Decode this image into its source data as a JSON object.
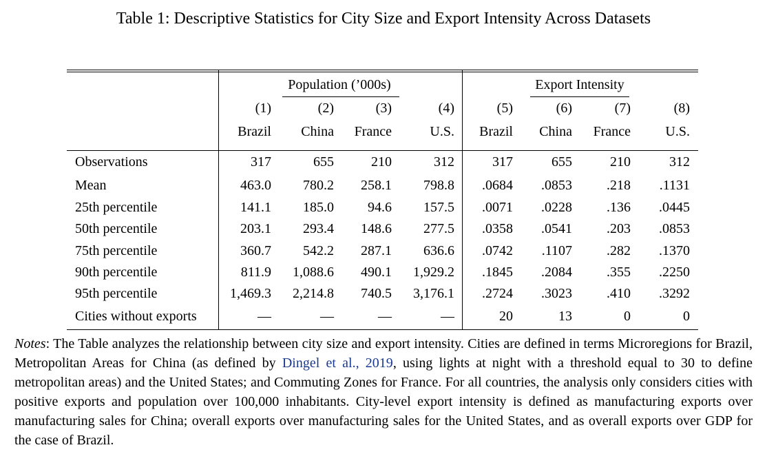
{
  "caption": "Table 1: Descriptive Statistics for City Size and Export Intensity Across Datasets",
  "groups": {
    "population": "Population (’000s)",
    "export": "Export Intensity"
  },
  "column_numbers": [
    "(1)",
    "(2)",
    "(3)",
    "(4)",
    "(5)",
    "(6)",
    "(7)",
    "(8)"
  ],
  "column_countries": [
    "Brazil",
    "China",
    "France",
    "U.S.",
    "Brazil",
    "China",
    "France",
    "U.S."
  ],
  "rows": [
    {
      "label": "Observations",
      "values": [
        "317",
        "655",
        "210",
        "312",
        "317",
        "655",
        "210",
        "312"
      ]
    },
    {
      "label": "Mean",
      "values": [
        "463.0",
        "780.2",
        "258.1",
        "798.8",
        ".0684",
        ".0853",
        ".218",
        ".1131"
      ]
    },
    {
      "label": "25th percentile",
      "values": [
        "141.1",
        "185.0",
        "94.6",
        "157.5",
        ".0071",
        ".0228",
        ".136",
        ".0445"
      ]
    },
    {
      "label": "50th percentile",
      "values": [
        "203.1",
        "293.4",
        "148.6",
        "277.5",
        ".0358",
        ".0541",
        ".203",
        ".0853"
      ]
    },
    {
      "label": "75th percentile",
      "values": [
        "360.7",
        "542.2",
        "287.1",
        "636.6",
        ".0742",
        ".1107",
        ".282",
        ".1370"
      ]
    },
    {
      "label": "90th percentile",
      "values": [
        "811.9",
        "1,088.6",
        "490.1",
        "1,929.2",
        ".1845",
        ".2084",
        ".355",
        ".2250"
      ]
    },
    {
      "label": "95th percentile",
      "values": [
        "1,469.3",
        "2,214.8",
        "740.5",
        "3,176.1",
        ".2724",
        ".3023",
        ".410",
        ".3292"
      ]
    },
    {
      "label": "Cities without exports",
      "values": [
        "—",
        "—",
        "—",
        "—",
        "20",
        "13",
        "0",
        "0"
      ]
    }
  ],
  "notes": {
    "label": "Notes",
    "before_cite": ": The Table analyzes the relationship between city size and export intensity. Cities are defined in terms Microregions for Brazil, Metropolitan Areas for China (as defined by ",
    "cite": "Dingel et al., 2019",
    "after_cite": ", using lights at night with a threshold equal to 30 to define metropolitan areas) and the United States; and Commuting Zones for France. For all countries, the analysis only considers cities with positive exports and population over 100,000 inhabitants. City-level export intensity is defined as manufacturing exports over manufacturing sales for China; overall exports over manufacturing sales for the United States, and as overall exports over GDP for the case of Brazil."
  }
}
